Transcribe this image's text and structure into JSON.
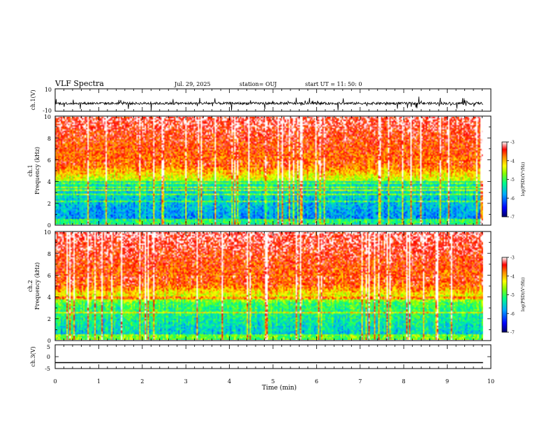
{
  "header": {
    "title": "VLF Spectra",
    "date": "Jul. 29, 2025",
    "station": "station= OUJ",
    "start": "start  UT =  11: 50: 0"
  },
  "colors": {
    "background": "#ffffff",
    "axes": "#000000",
    "colormap": [
      "#000080",
      "#0000ff",
      "#00aaff",
      "#00ffaa",
      "#aaff00",
      "#ffff00",
      "#ff8800",
      "#ff0000",
      "#ffffff"
    ]
  },
  "chart_data": [
    {
      "type": "line",
      "panel": "ch1-waveform",
      "ylabel": "ch.1(V)",
      "ylim": [
        -10,
        10
      ],
      "yticks": [
        "10",
        "-10"
      ],
      "baseline": -3,
      "description_values": {
        "typical_min": -6,
        "typical_max": 0
      }
    },
    {
      "type": "heatmap",
      "panel": "ch1-spectrogram",
      "ylabel_line1": "ch.1",
      "ylabel_line2": "Frequency (kHz)",
      "ylim": [
        0,
        10
      ],
      "yticks": [
        "0",
        "2",
        "4",
        "6",
        "8",
        "10"
      ],
      "xlim": [
        0,
        10
      ],
      "colorbar": {
        "label": "log(PSD)(V²/Hz)",
        "ticks": [
          "-3",
          "-4",
          "-5",
          "-6",
          "-7"
        ],
        "range": [
          -7,
          -3
        ]
      }
    },
    {
      "type": "heatmap",
      "panel": "ch2-spectrogram",
      "ylabel_line1": "ch.2",
      "ylabel_line2": "Frequency (kHz)",
      "ylim": [
        0,
        10
      ],
      "yticks": [
        "0",
        "2",
        "4",
        "6",
        "8",
        "10"
      ],
      "xlim": [
        0,
        10
      ],
      "colorbar": {
        "label": "log(PSD)(V²/Hz)",
        "ticks": [
          "-3",
          "-4",
          "-5",
          "-6",
          "-7"
        ],
        "range": [
          -7,
          -3
        ]
      }
    },
    {
      "type": "line",
      "panel": "ch3-waveform",
      "ylabel": "ch.3(V)",
      "ylim": [
        -5,
        5
      ],
      "yticks": [
        "5",
        "0",
        "-5"
      ],
      "values_constant": -2.5
    }
  ],
  "xaxis": {
    "label": "Time (min)",
    "ticks": [
      "0",
      "1",
      "2",
      "3",
      "4",
      "5",
      "6",
      "7",
      "8",
      "9",
      "10"
    ],
    "range": [
      0,
      10
    ],
    "data_end": 9.82
  }
}
